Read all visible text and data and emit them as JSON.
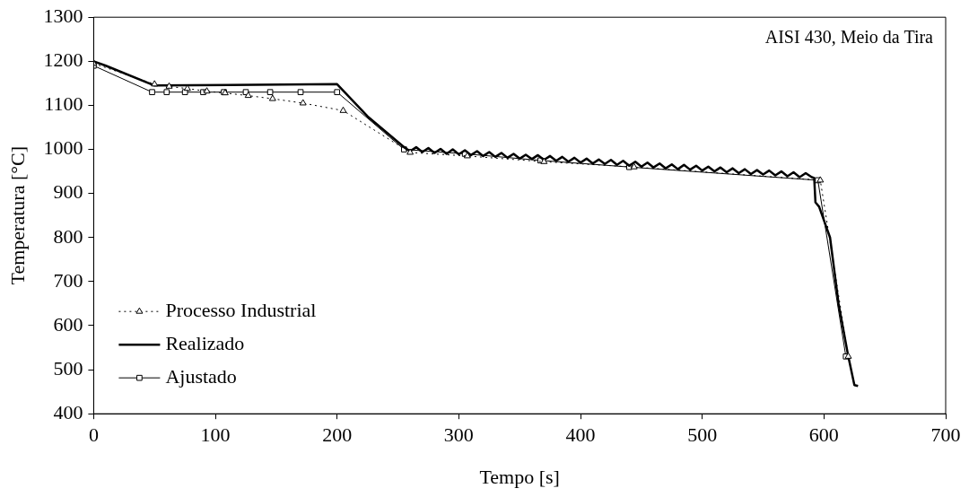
{
  "chart_data": {
    "type": "line",
    "xlabel": "Tempo [s]",
    "ylabel": "Temperatura [°C]",
    "annotations": [
      "AISI 430, Meio da Tira"
    ],
    "xlim": [
      0,
      700
    ],
    "xticks": [
      0,
      100,
      200,
      300,
      400,
      500,
      600,
      700
    ],
    "ylim": [
      400,
      1300
    ],
    "yticks": [
      400,
      500,
      600,
      700,
      800,
      900,
      1000,
      1100,
      1200,
      1300
    ],
    "grid": false,
    "legend": "bottom left",
    "series": [
      {
        "name": "Processo Industrial",
        "color": "#000000",
        "marker": "triangle",
        "line_style": "dotted",
        "x": [
          0,
          50,
          62,
          77,
          93,
          108,
          127,
          147,
          172,
          205,
          260,
          307,
          370,
          444,
          597,
          620
        ],
        "values": [
          1195,
          1148,
          1143,
          1138,
          1132,
          1128,
          1122,
          1115,
          1105,
          1088,
          993,
          985,
          972,
          960,
          930,
          530
        ]
      },
      {
        "name": "Realizado",
        "color": "#000000",
        "marker": "none",
        "line_style": "solid",
        "x": [
          0,
          10,
          50,
          200,
          225,
          255,
          260,
          265,
          270,
          275,
          280,
          285,
          290,
          295,
          300,
          305,
          310,
          315,
          320,
          325,
          330,
          335,
          340,
          345,
          350,
          355,
          360,
          365,
          370,
          375,
          380,
          385,
          390,
          395,
          400,
          405,
          410,
          415,
          420,
          425,
          430,
          435,
          440,
          445,
          450,
          455,
          460,
          465,
          470,
          475,
          480,
          485,
          490,
          495,
          500,
          505,
          510,
          515,
          520,
          525,
          530,
          535,
          540,
          545,
          550,
          555,
          560,
          565,
          570,
          575,
          580,
          585,
          590,
          592,
          593,
          596,
          605,
          612,
          620,
          625,
          628
        ],
        "values": [
          1200,
          1190,
          1145,
          1148,
          1075,
          1005,
          996,
          1005,
          994,
          1003,
          992,
          1001,
          990,
          1000,
          989,
          998,
          987,
          996,
          985,
          994,
          983,
          992,
          981,
          990,
          979,
          988,
          978,
          987,
          976,
          985,
          974,
          983,
          972,
          981,
          970,
          979,
          968,
          977,
          967,
          976,
          965,
          974,
          963,
          972,
          961,
          970,
          959,
          968,
          957,
          966,
          955,
          965,
          954,
          963,
          952,
          961,
          950,
          959,
          948,
          957,
          946,
          955,
          944,
          953,
          943,
          952,
          941,
          950,
          939,
          948,
          937,
          946,
          937,
          935,
          880,
          870,
          800,
          650,
          530,
          465,
          463
        ]
      },
      {
        "name": "Ajustado",
        "color": "#000000",
        "marker": "square",
        "line_style": "solid",
        "x": [
          0,
          48,
          60,
          75,
          90,
          107,
          125,
          145,
          170,
          200,
          255,
          305,
          367,
          440,
          595,
          618
        ],
        "values": [
          1190,
          1130,
          1130,
          1130,
          1130,
          1130,
          1130,
          1130,
          1130,
          1130,
          1000,
          990,
          975,
          960,
          930,
          530
        ]
      }
    ]
  }
}
